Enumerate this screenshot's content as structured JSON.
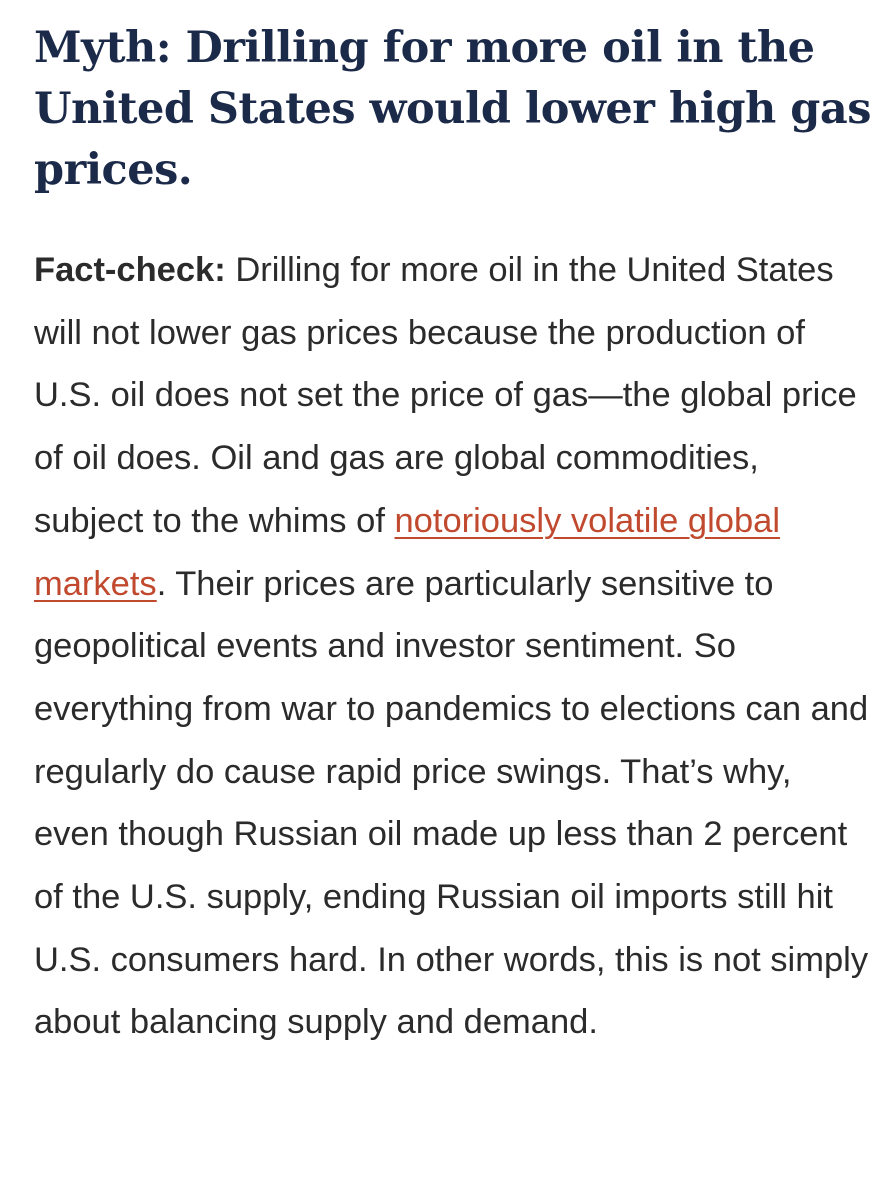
{
  "article": {
    "headline": "Myth: Drilling for more oil in the United States would lower high gas prices.",
    "fact_check": {
      "lead_label": "Fact-check:",
      "text_before_link": " Drilling for more oil in the United States will not lower gas prices because the production of U.S. oil does not set the price of gas—the global price of oil does. Oil and gas are global commodities, subject to the whims of ",
      "link_text": "notoriously volatile global markets",
      "text_after_link": ". Their prices are particularly sensitive to geopolitical events and investor sentiment. So everything from war to pandemics to elections can and regularly do cause rapid price swings. That’s why, even though Russian oil made up less than 2 percent of the U.S. supply, ending Russian oil imports still hit U.S. consumers hard. In other words, this is not simply about balancing supply and demand."
    }
  },
  "colors": {
    "headline": "#1c2a4a",
    "body": "#2b2b2b",
    "link": "#c0492e"
  }
}
